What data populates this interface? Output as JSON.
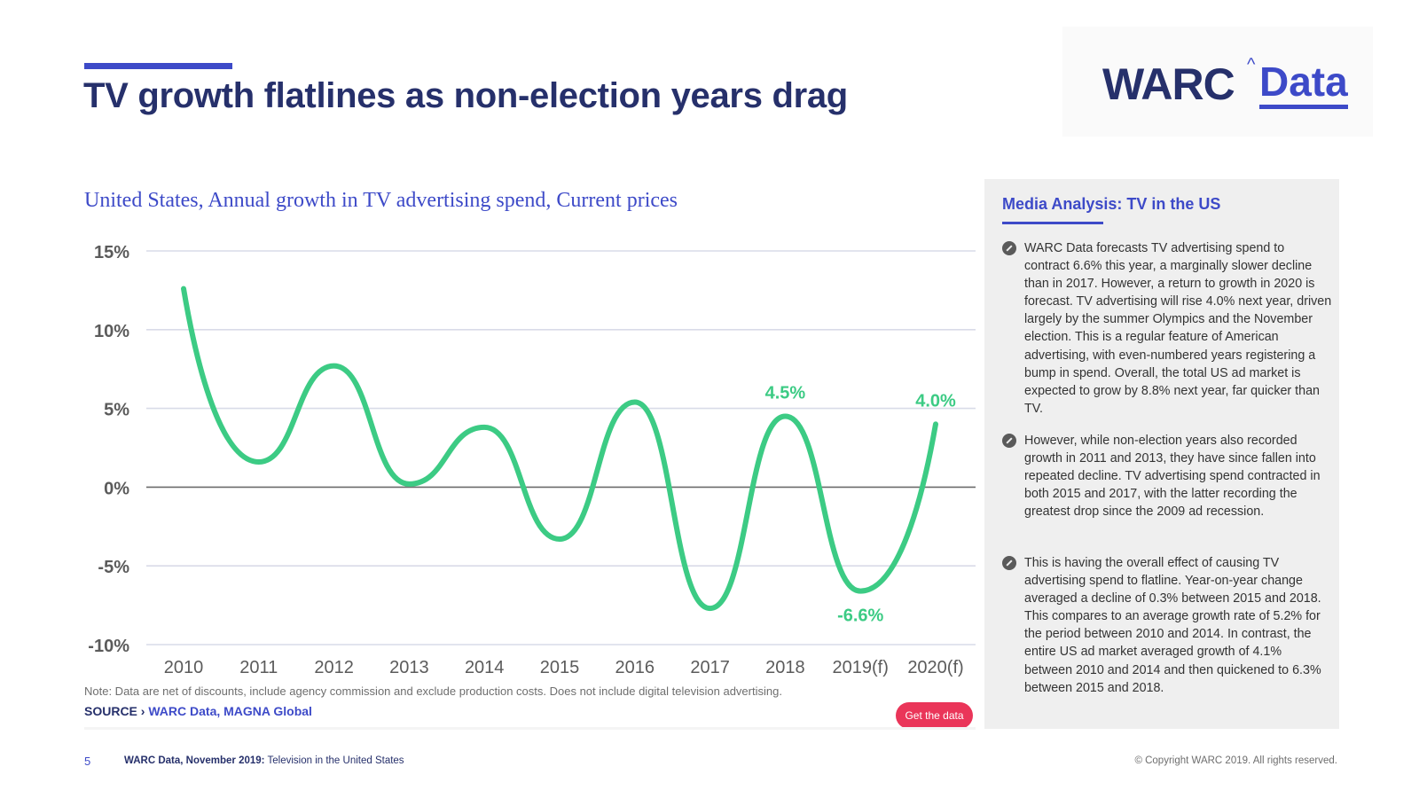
{
  "header": {
    "title": "TV growth flatlines as non-election years drag",
    "logo": {
      "warc": "WARC",
      "caret": "^",
      "data": "Data"
    }
  },
  "chart_data": {
    "type": "line",
    "title": "United States, Annual growth in TV advertising spend, Current prices",
    "categories": [
      "2010",
      "2011",
      "2012",
      "2013",
      "2014",
      "2015",
      "2016",
      "2017",
      "2018",
      "2019(f)",
      "2020(f)"
    ],
    "values": [
      12.6,
      1.6,
      7.7,
      0.2,
      3.8,
      -3.3,
      5.4,
      -7.7,
      4.5,
      -6.6,
      4.0
    ],
    "ylim": [
      -10,
      15
    ],
    "yticks": [
      15,
      10,
      5,
      0,
      -5,
      -10
    ],
    "ytick_labels": [
      "15%",
      "10%",
      "5%",
      "0%",
      "-5%",
      "-10%"
    ],
    "xlabel": "",
    "ylabel": "",
    "grid": true,
    "line_color": "#3ccb84",
    "annotations": [
      {
        "index": 8,
        "label": "4.5%",
        "position": "above"
      },
      {
        "index": 9,
        "label": "-6.6%",
        "position": "below"
      },
      {
        "index": 10,
        "label": "4.0%",
        "position": "above"
      }
    ]
  },
  "notes": {
    "note": "Note: Data are net of discounts, include agency commission and exclude production costs. Does not include digital television advertising.",
    "source_prefix": "SOURCE ›",
    "source_value": "WARC Data, MAGNA Global"
  },
  "get_data_button": "Get the data",
  "panel": {
    "title": "Media Analysis: TV in the US",
    "paragraphs": [
      "WARC Data forecasts TV advertising spend to contract 6.6% this year, a marginally slower decline than in 2017. However, a return to growth in 2020 is forecast. TV advertising will rise 4.0% next year, driven largely by the summer Olympics and the November election. This is a regular feature of American advertising, with even-numbered years registering a bump in spend. Overall, the total US ad market is expected to grow by 8.8% next year, far quicker than TV.",
      "However, while non-election years also recorded growth in 2011 and 2013, they have since fallen into repeated decline. TV advertising spend contracted in both 2015 and 2017, with the latter recording the greatest drop since the 2009 ad recession.",
      "This is having the overall effect of causing TV advertising spend to flatline. Year-on-year change averaged a decline of 0.3% between 2015 and 2018. This compares to an average growth rate of 5.2% for the period between 2010 and 2014. In contrast, the entire US ad market averaged growth of 4.1% between 2010 and 2014 and then quickened to 6.3% between 2015 and 2018."
    ]
  },
  "footer": {
    "page_number": "5",
    "report_bold": "WARC Data, November 2019:",
    "report_rest": "Television in the United States",
    "copyright": "© Copyright WARC 2019. All rights reserved."
  }
}
